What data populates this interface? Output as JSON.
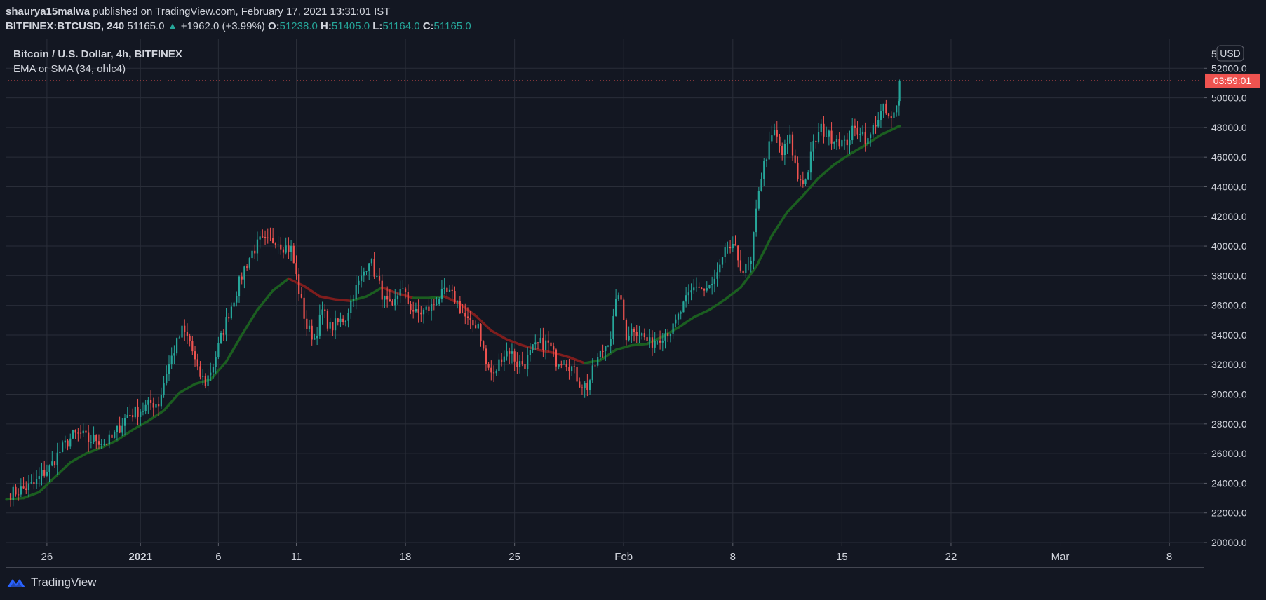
{
  "header": {
    "author": "shaurya15malwa",
    "published_text": "published on TradingView.com, February 17, 2021 13:31:01 IST",
    "symbol": "BITFINEX:BTCUSD, 240",
    "last_price": "51165.0",
    "change_arrow": "▲",
    "change": "+1962.0 (+3.99%)",
    "o_label": "O:",
    "o_value": "51238.0",
    "h_label": "H:",
    "h_value": "51405.0",
    "l_label": "L:",
    "l_value": "51164.0",
    "c_label": "C:",
    "c_value": "51165.0"
  },
  "legend": {
    "title": "Bitcoin / U.S. Dollar, 4h, BITFINEX",
    "indicator": "EMA or SMA (34, ohlc4)"
  },
  "price_axis": {
    "currency_button": "USD",
    "top_partial_label": "5",
    "countdown": "03:59:01"
  },
  "footer": {
    "brand": "TradingView"
  },
  "colors": {
    "background": "#131722",
    "grid": "#2a2e39",
    "up": "#26a69a",
    "down": "#ef5350",
    "ma_up": "#1b5e20",
    "ma_down": "#7f1d1d",
    "price_tag": "#ef5350"
  },
  "chart_data": {
    "type": "candlestick",
    "title": "Bitcoin / U.S. Dollar, 4h, BITFINEX",
    "ylim": [
      20000,
      54000
    ],
    "y_ticks": [
      20000,
      22000,
      24000,
      26000,
      28000,
      30000,
      32000,
      34000,
      36000,
      38000,
      40000,
      42000,
      44000,
      46000,
      48000,
      50000,
      52000
    ],
    "y_tick_labels": [
      "20000.0",
      "22000.0",
      "24000.0",
      "26000.0",
      "28000.0",
      "30000.0",
      "32000.0",
      "34000.0",
      "36000.0",
      "38000.0",
      "40000.0",
      "42000.0",
      "44000.0",
      "46000.0",
      "48000.0",
      "50000.0",
      "52000.0"
    ],
    "x_ticks": [
      {
        "day": 26,
        "label": "26"
      },
      {
        "day": 32,
        "label": "2021"
      },
      {
        "day": 37,
        "label": "6"
      },
      {
        "day": 42,
        "label": "11"
      },
      {
        "day": 49,
        "label": "18"
      },
      {
        "day": 56,
        "label": "25"
      },
      {
        "day": 63,
        "label": "Feb"
      },
      {
        "day": 70,
        "label": "8"
      },
      {
        "day": 77,
        "label": "15"
      },
      {
        "day": 84,
        "label": "22"
      },
      {
        "day": 91,
        "label": "Mar"
      },
      {
        "day": 98,
        "label": "8"
      }
    ],
    "x_range_days": [
      23.35,
      100.2
    ],
    "last_price": 51165,
    "series": [
      {
        "name": "Bitcoin / U.S. Dollar",
        "points": [
          [
            23.5,
            23300
          ],
          [
            24.0,
            23500
          ],
          [
            24.5,
            23700
          ],
          [
            25.0,
            23900
          ],
          [
            25.5,
            24600
          ],
          [
            26.0,
            25000
          ],
          [
            26.5,
            25900
          ],
          [
            27.0,
            26600
          ],
          [
            27.5,
            27200
          ],
          [
            28.0,
            27300
          ],
          [
            28.5,
            26900
          ],
          [
            29.0,
            27000
          ],
          [
            29.5,
            26700
          ],
          [
            30.0,
            27000
          ],
          [
            30.5,
            27800
          ],
          [
            31.0,
            28600
          ],
          [
            31.5,
            28800
          ],
          [
            32.0,
            29000
          ],
          [
            32.5,
            29400
          ],
          [
            33.0,
            29400
          ],
          [
            33.5,
            31500
          ],
          [
            34.0,
            33000
          ],
          [
            34.5,
            34300
          ],
          [
            35.0,
            33600
          ],
          [
            35.5,
            31500
          ],
          [
            36.0,
            30800
          ],
          [
            36.5,
            32000
          ],
          [
            37.0,
            33800
          ],
          [
            37.5,
            35500
          ],
          [
            38.0,
            37000
          ],
          [
            38.5,
            38500
          ],
          [
            39.0,
            39600
          ],
          [
            39.5,
            40300
          ],
          [
            40.0,
            40200
          ],
          [
            40.5,
            40500
          ],
          [
            41.0,
            40000
          ],
          [
            41.5,
            39800
          ],
          [
            42.0,
            37000
          ],
          [
            42.5,
            34500
          ],
          [
            43.0,
            33800
          ],
          [
            43.5,
            35600
          ],
          [
            44.0,
            34500
          ],
          [
            44.5,
            34800
          ],
          [
            45.0,
            35200
          ],
          [
            45.5,
            36800
          ],
          [
            46.0,
            37800
          ],
          [
            46.5,
            39200
          ],
          [
            47.0,
            37800
          ],
          [
            47.5,
            36300
          ],
          [
            48.0,
            35600
          ],
          [
            48.5,
            37300
          ],
          [
            49.0,
            36200
          ],
          [
            49.5,
            35400
          ],
          [
            50.0,
            35600
          ],
          [
            50.5,
            35900
          ],
          [
            51.0,
            36600
          ],
          [
            51.5,
            36800
          ],
          [
            52.0,
            36500
          ],
          [
            52.5,
            35500
          ],
          [
            53.0,
            34600
          ],
          [
            53.5,
            34800
          ],
          [
            54.0,
            32000
          ],
          [
            54.5,
            31200
          ],
          [
            55.0,
            32600
          ],
          [
            55.5,
            33000
          ],
          [
            56.0,
            32100
          ],
          [
            56.5,
            32100
          ],
          [
            57.0,
            33000
          ],
          [
            57.5,
            33400
          ],
          [
            58.0,
            33400
          ],
          [
            58.5,
            32300
          ],
          [
            59.0,
            32400
          ],
          [
            59.5,
            31800
          ],
          [
            60.0,
            30800
          ],
          [
            60.5,
            30500
          ],
          [
            61.0,
            32000
          ],
          [
            61.5,
            33000
          ],
          [
            62.0,
            34000
          ],
          [
            62.5,
            37000
          ],
          [
            63.0,
            34000
          ],
          [
            63.5,
            34500
          ],
          [
            64.0,
            34000
          ],
          [
            64.5,
            33400
          ],
          [
            65.0,
            33800
          ],
          [
            65.5,
            34200
          ],
          [
            66.0,
            34400
          ],
          [
            66.5,
            35600
          ],
          [
            67.0,
            36600
          ],
          [
            67.5,
            37400
          ],
          [
            68.0,
            37000
          ],
          [
            68.5,
            37300
          ],
          [
            69.0,
            38400
          ],
          [
            69.5,
            40000
          ],
          [
            70.0,
            39600
          ],
          [
            70.5,
            38300
          ],
          [
            71.0,
            38800
          ],
          [
            71.5,
            44000
          ],
          [
            72.0,
            46200
          ],
          [
            72.5,
            47700
          ],
          [
            73.0,
            46200
          ],
          [
            73.5,
            47200
          ],
          [
            74.0,
            44600
          ],
          [
            74.5,
            44400
          ],
          [
            75.0,
            46800
          ],
          [
            75.5,
            47900
          ],
          [
            76.0,
            47400
          ],
          [
            76.5,
            47300
          ],
          [
            77.0,
            46800
          ],
          [
            77.5,
            47700
          ],
          [
            78.0,
            47900
          ],
          [
            78.5,
            47000
          ],
          [
            79.0,
            48400
          ],
          [
            79.5,
            49200
          ],
          [
            80.0,
            48400
          ],
          [
            80.5,
            49700
          ],
          [
            80.7,
            51165
          ]
        ]
      },
      {
        "name": "EMA or SMA (34, ohlc4)",
        "points": [
          [
            23.4,
            22900
          ],
          [
            24.5,
            23000
          ],
          [
            25.5,
            23400
          ],
          [
            26.5,
            24400
          ],
          [
            27.5,
            25400
          ],
          [
            28.5,
            26000
          ],
          [
            29.5,
            26400
          ],
          [
            30.5,
            26900
          ],
          [
            31.5,
            27600
          ],
          [
            32.5,
            28200
          ],
          [
            33.5,
            28900
          ],
          [
            34.5,
            30100
          ],
          [
            35.5,
            30700
          ],
          [
            36.5,
            31000
          ],
          [
            37.5,
            32200
          ],
          [
            38.5,
            34000
          ],
          [
            39.5,
            35700
          ],
          [
            40.5,
            37000
          ],
          [
            41.5,
            37800
          ],
          [
            42.5,
            37300
          ],
          [
            43.5,
            36600
          ],
          [
            44.5,
            36400
          ],
          [
            45.5,
            36300
          ],
          [
            46.5,
            36600
          ],
          [
            47.5,
            37200
          ],
          [
            48.5,
            36800
          ],
          [
            49.5,
            36500
          ],
          [
            50.5,
            36500
          ],
          [
            51.5,
            36600
          ],
          [
            52.5,
            36100
          ],
          [
            53.5,
            35300
          ],
          [
            54.5,
            34300
          ],
          [
            55.5,
            33700
          ],
          [
            56.5,
            33300
          ],
          [
            57.5,
            33000
          ],
          [
            58.5,
            32800
          ],
          [
            59.5,
            32500
          ],
          [
            60.5,
            32100
          ],
          [
            61.5,
            32300
          ],
          [
            62.5,
            33000
          ],
          [
            63.5,
            33300
          ],
          [
            64.5,
            33400
          ],
          [
            65.5,
            33900
          ],
          [
            66.5,
            34500
          ],
          [
            67.5,
            35200
          ],
          [
            68.5,
            35700
          ],
          [
            69.5,
            36400
          ],
          [
            70.5,
            37200
          ],
          [
            71.5,
            38600
          ],
          [
            72.5,
            40700
          ],
          [
            73.5,
            42300
          ],
          [
            74.5,
            43400
          ],
          [
            75.5,
            44600
          ],
          [
            76.5,
            45500
          ],
          [
            77.5,
            46200
          ],
          [
            78.5,
            46800
          ],
          [
            79.5,
            47500
          ],
          [
            80.7,
            48100
          ]
        ]
      }
    ]
  }
}
